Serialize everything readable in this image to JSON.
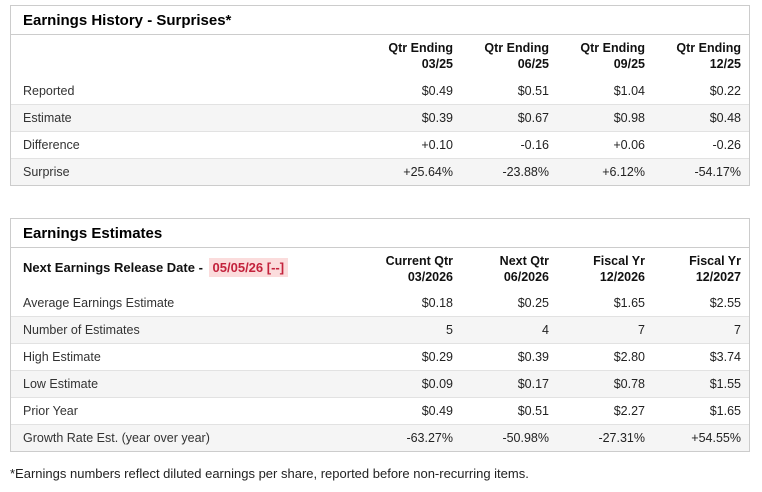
{
  "colors": {
    "pos": "#1f8268",
    "neg": "#c3223c",
    "hilite": "#fbdcdc"
  },
  "history": {
    "title": "Earnings History - Surprises*",
    "columns": [
      {
        "line1": "Qtr Ending",
        "line2": "03/25"
      },
      {
        "line1": "Qtr Ending",
        "line2": "06/25"
      },
      {
        "line1": "Qtr Ending",
        "line2": "09/25"
      },
      {
        "line1": "Qtr Ending",
        "line2": "12/25"
      }
    ],
    "rows": [
      {
        "label": "Reported",
        "values": [
          "$0.49",
          "$0.51",
          "$1.04",
          "$0.22"
        ]
      },
      {
        "label": "Estimate",
        "values": [
          "$0.39",
          "$0.67",
          "$0.98",
          "$0.48"
        ]
      },
      {
        "label": "Difference",
        "values": [
          "+0.10",
          "-0.16",
          "+0.06",
          "-0.26"
        ]
      },
      {
        "label": "Surprise",
        "values": [
          "+25.64%",
          "-23.88%",
          "+6.12%",
          "-54.17%"
        ]
      }
    ]
  },
  "estimates": {
    "title": "Earnings Estimates",
    "release_label": "Next Earnings Release Date - ",
    "release_date": "05/05/26 [--]",
    "columns": [
      {
        "line1": "Current Qtr",
        "line2": "03/2026"
      },
      {
        "line1": "Next Qtr",
        "line2": "06/2026"
      },
      {
        "line1": "Fiscal Yr",
        "line2": "12/2026"
      },
      {
        "line1": "Fiscal Yr",
        "line2": "12/2027"
      }
    ],
    "rows": [
      {
        "label": "Average Earnings Estimate",
        "values": [
          "$0.18",
          "$0.25",
          "$1.65",
          "$2.55"
        ]
      },
      {
        "label": "Number of Estimates",
        "values": [
          "5",
          "4",
          "7",
          "7"
        ]
      },
      {
        "label": "High Estimate",
        "values": [
          "$0.29",
          "$0.39",
          "$2.80",
          "$3.74"
        ]
      },
      {
        "label": "Low Estimate",
        "values": [
          "$0.09",
          "$0.17",
          "$0.78",
          "$1.55"
        ]
      },
      {
        "label": "Prior Year",
        "values": [
          "$0.49",
          "$0.51",
          "$2.27",
          "$1.65"
        ]
      },
      {
        "label": "Growth Rate Est. (year over year)",
        "values": [
          "-63.27%",
          "-50.98%",
          "-27.31%",
          "+54.55%"
        ]
      }
    ]
  },
  "footnote": "*Earnings numbers reflect diluted earnings per share, reported before non-recurring items."
}
